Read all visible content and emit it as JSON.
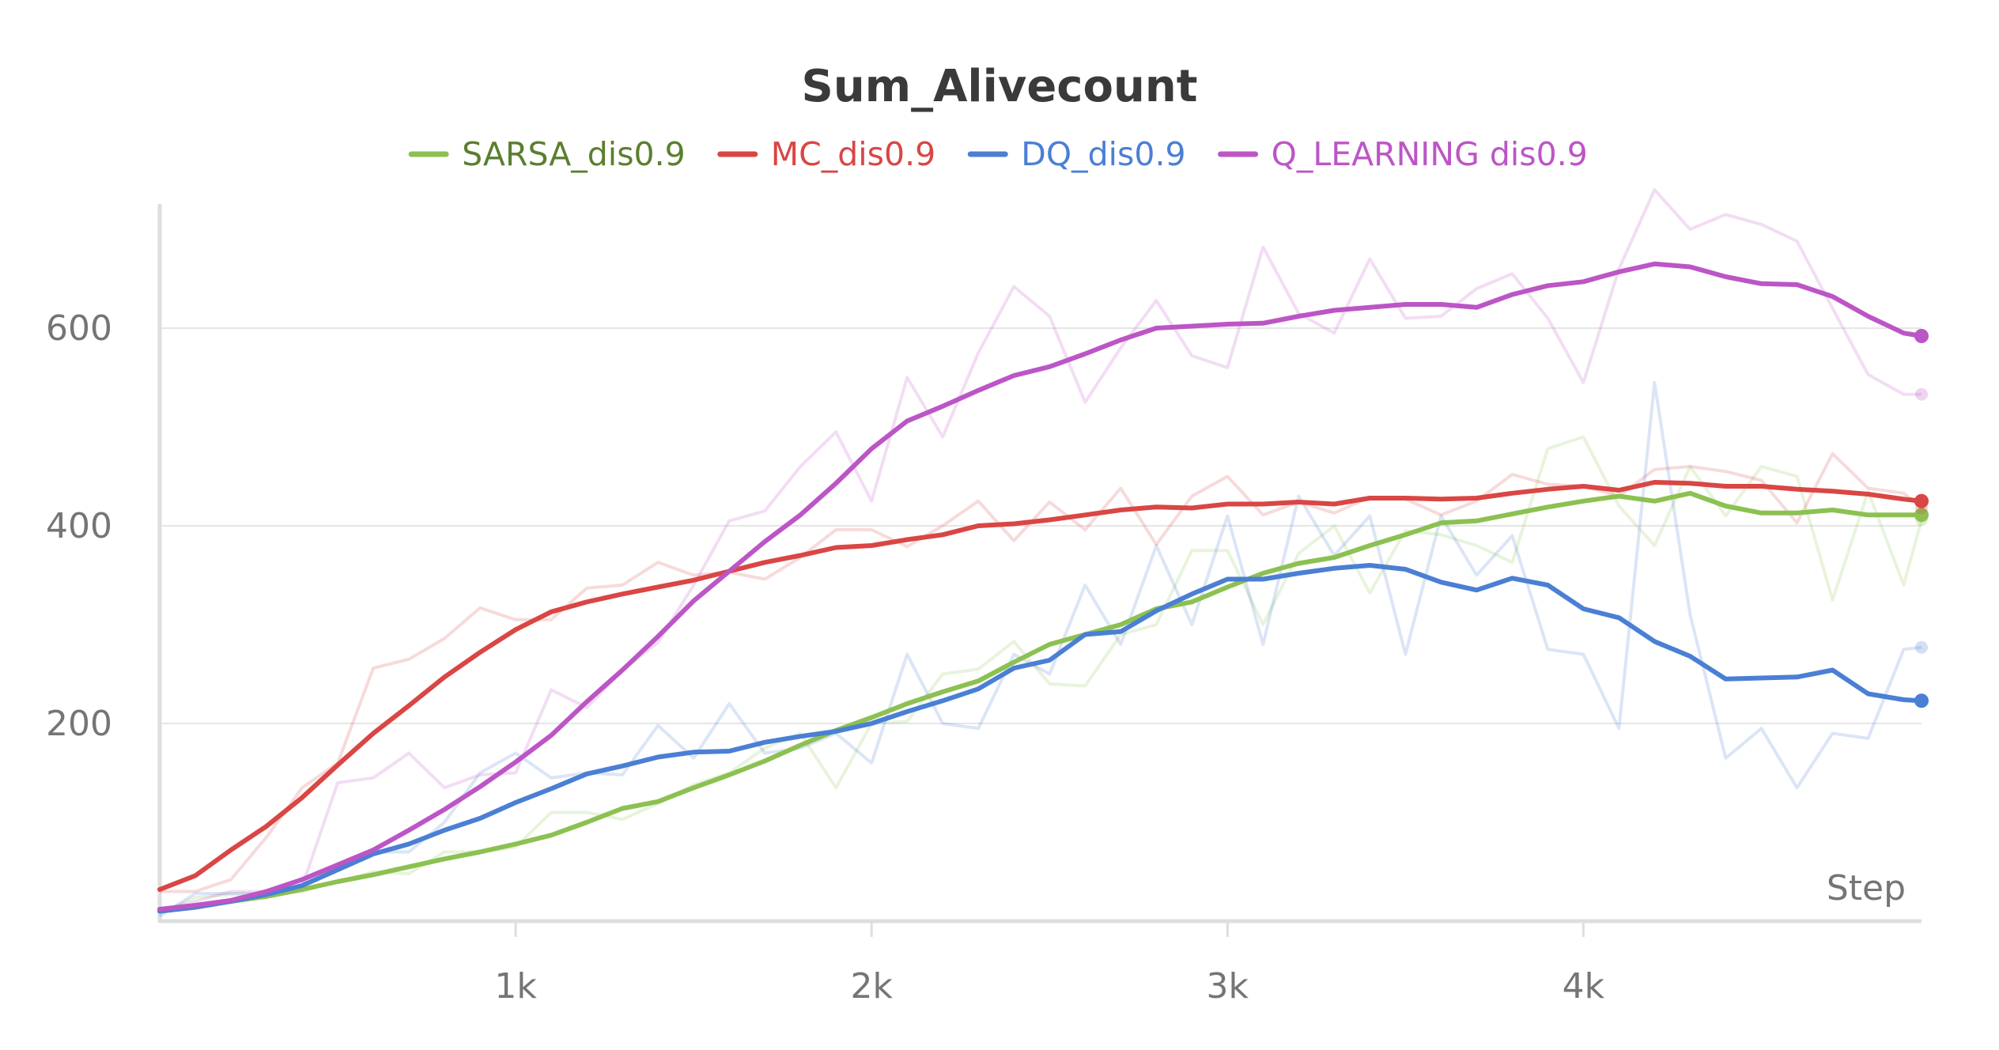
{
  "chart_data": {
    "type": "line",
    "title": "Sum_Alivecount",
    "xlabel": "Step",
    "ylabel": "",
    "xlim": [
      0,
      4950
    ],
    "ylim": [
      0,
      740
    ],
    "x_ticks": [
      1000,
      2000,
      3000,
      4000
    ],
    "x_tick_labels": [
      "1k",
      "2k",
      "3k",
      "4k"
    ],
    "y_ticks": [
      200,
      400,
      600
    ],
    "y_tick_labels": [
      "200",
      "400",
      "600"
    ],
    "grid": "horizontal",
    "legend_position": "top-center",
    "raw_line_opacity": 0.2,
    "series": [
      {
        "name": "SARSA_dis0.9",
        "color": "#8cc152",
        "legend_text_color": "#5a7f2e",
        "x": [
          0,
          100,
          200,
          300,
          400,
          500,
          600,
          700,
          800,
          900,
          1000,
          1100,
          1200,
          1300,
          1400,
          1500,
          1600,
          1700,
          1800,
          1900,
          2000,
          2100,
          2200,
          2300,
          2400,
          2500,
          2600,
          2700,
          2800,
          2900,
          3000,
          3100,
          3200,
          3300,
          3400,
          3500,
          3600,
          3700,
          3800,
          3900,
          4000,
          4100,
          4200,
          4300,
          4400,
          4500,
          4600,
          4700,
          4800,
          4900,
          4950
        ],
        "smoothed": [
          10,
          15,
          20,
          25,
          32,
          40,
          47,
          55,
          63,
          70,
          78,
          87,
          100,
          114,
          121,
          135,
          148,
          162,
          178,
          193,
          206,
          220,
          232,
          243,
          262,
          280,
          290,
          300,
          316,
          323,
          338,
          352,
          362,
          368,
          380,
          391,
          403,
          405,
          412,
          419,
          425,
          430,
          425,
          433,
          420,
          413,
          413,
          416,
          411,
          411,
          411
        ],
        "raw": [
          8,
          24,
          27,
          27,
          30,
          40,
          50,
          48,
          70,
          70,
          75,
          110,
          110,
          103,
          119,
          138,
          150,
          175,
          190,
          135,
          200,
          202,
          250,
          255,
          283,
          240,
          238,
          290,
          300,
          375,
          375,
          300,
          372,
          400,
          332,
          395,
          391,
          380,
          363,
          478,
          490,
          420,
          380,
          460,
          410,
          460,
          450,
          325,
          435,
          340,
          406
        ]
      },
      {
        "name": "MC_dis0.9",
        "color": "#d94644",
        "legend_text_color": "#d94644",
        "x": [
          0,
          100,
          200,
          300,
          400,
          500,
          600,
          700,
          800,
          900,
          1000,
          1100,
          1200,
          1300,
          1400,
          1500,
          1600,
          1700,
          1800,
          1900,
          2000,
          2100,
          2200,
          2300,
          2400,
          2500,
          2600,
          2700,
          2800,
          2900,
          3000,
          3100,
          3200,
          3300,
          3400,
          3500,
          3600,
          3700,
          3800,
          3900,
          4000,
          4100,
          4200,
          4300,
          4400,
          4500,
          4600,
          4700,
          4800,
          4900,
          4950
        ],
        "smoothed": [
          32,
          46,
          72,
          96,
          125,
          158,
          190,
          218,
          247,
          272,
          295,
          313,
          323,
          331,
          338,
          345,
          354,
          363,
          370,
          378,
          380,
          386,
          391,
          400,
          402,
          406,
          411,
          416,
          419,
          418,
          422,
          422,
          424,
          422,
          428,
          428,
          427,
          428,
          433,
          437,
          440,
          436,
          444,
          443,
          440,
          440,
          437,
          435,
          432,
          427,
          425
        ],
        "raw": [
          30,
          30,
          42,
          85,
          135,
          160,
          256,
          265,
          286,
          317,
          305,
          305,
          337,
          340,
          363,
          350,
          353,
          346,
          368,
          396,
          396,
          379,
          400,
          425,
          385,
          424,
          396,
          438,
          381,
          430,
          450,
          411,
          424,
          413,
          429,
          427,
          411,
          425,
          452,
          442,
          440,
          430,
          457,
          460,
          455,
          446,
          403,
          473,
          438,
          433,
          418
        ]
      },
      {
        "name": "DQ_dis0.9",
        "color": "#4a7fd4",
        "legend_text_color": "#4a7fd4",
        "x": [
          0,
          100,
          200,
          300,
          400,
          500,
          600,
          700,
          800,
          900,
          1000,
          1100,
          1200,
          1300,
          1400,
          1500,
          1600,
          1700,
          1800,
          1900,
          2000,
          2100,
          2200,
          2300,
          2400,
          2500,
          2600,
          2700,
          2800,
          2900,
          3000,
          3100,
          3200,
          3300,
          3400,
          3500,
          3600,
          3700,
          3800,
          3900,
          4000,
          4100,
          4200,
          4300,
          4400,
          4500,
          4600,
          4700,
          4800,
          4900,
          4950
        ],
        "smoothed": [
          10,
          14,
          20,
          27,
          36,
          52,
          68,
          78,
          92,
          104,
          120,
          134,
          149,
          157,
          166,
          171,
          172,
          181,
          187,
          192,
          200,
          212,
          223,
          235,
          256,
          264,
          290,
          293,
          314,
          331,
          346,
          346,
          352,
          357,
          360,
          356,
          343,
          335,
          347,
          340,
          316,
          307,
          283,
          268,
          245,
          246,
          247,
          254,
          230,
          224,
          223
        ],
        "raw": [
          5,
          28,
          28,
          28,
          35,
          55,
          70,
          70,
          100,
          150,
          170,
          145,
          150,
          148,
          198,
          165,
          220,
          170,
          175,
          190,
          160,
          270,
          200,
          195,
          270,
          250,
          340,
          280,
          380,
          300,
          410,
          280,
          430,
          370,
          410,
          270,
          410,
          350,
          390,
          275,
          270,
          195,
          545,
          310,
          165,
          195,
          135,
          190,
          185,
          275,
          277
        ]
      },
      {
        "name": "Q_LEARNING dis0.9",
        "color": "#bc55c6",
        "legend_text_color": "#bc55c6",
        "x": [
          0,
          100,
          200,
          300,
          400,
          500,
          600,
          700,
          800,
          900,
          1000,
          1100,
          1200,
          1300,
          1400,
          1500,
          1600,
          1700,
          1800,
          1900,
          2000,
          2100,
          2200,
          2300,
          2400,
          2500,
          2600,
          2700,
          2800,
          2900,
          3000,
          3100,
          3200,
          3300,
          3400,
          3500,
          3600,
          3700,
          3800,
          3900,
          4000,
          4100,
          4200,
          4300,
          4400,
          4500,
          4600,
          4700,
          4800,
          4900,
          4950
        ],
        "smoothed": [
          12,
          16,
          21,
          30,
          42,
          57,
          72,
          92,
          113,
          136,
          161,
          188,
          222,
          254,
          288,
          324,
          354,
          384,
          411,
          443,
          478,
          506,
          521,
          537,
          552,
          561,
          574,
          588,
          600,
          602,
          604,
          605,
          612,
          618,
          621,
          624,
          624,
          621,
          634,
          643,
          647,
          657,
          665,
          662,
          652,
          645,
          644,
          632,
          612,
          595,
          592
        ],
        "raw": [
          10,
          20,
          30,
          30,
          35,
          140,
          145,
          170,
          135,
          148,
          150,
          234,
          216,
          254,
          282,
          340,
          405,
          415,
          460,
          495,
          425,
          550,
          490,
          575,
          642,
          612,
          525,
          580,
          628,
          572,
          560,
          682,
          615,
          595,
          670,
          610,
          612,
          640,
          655,
          610,
          545,
          660,
          740,
          700,
          715,
          705,
          688,
          620,
          553,
          533,
          533
        ]
      }
    ]
  }
}
